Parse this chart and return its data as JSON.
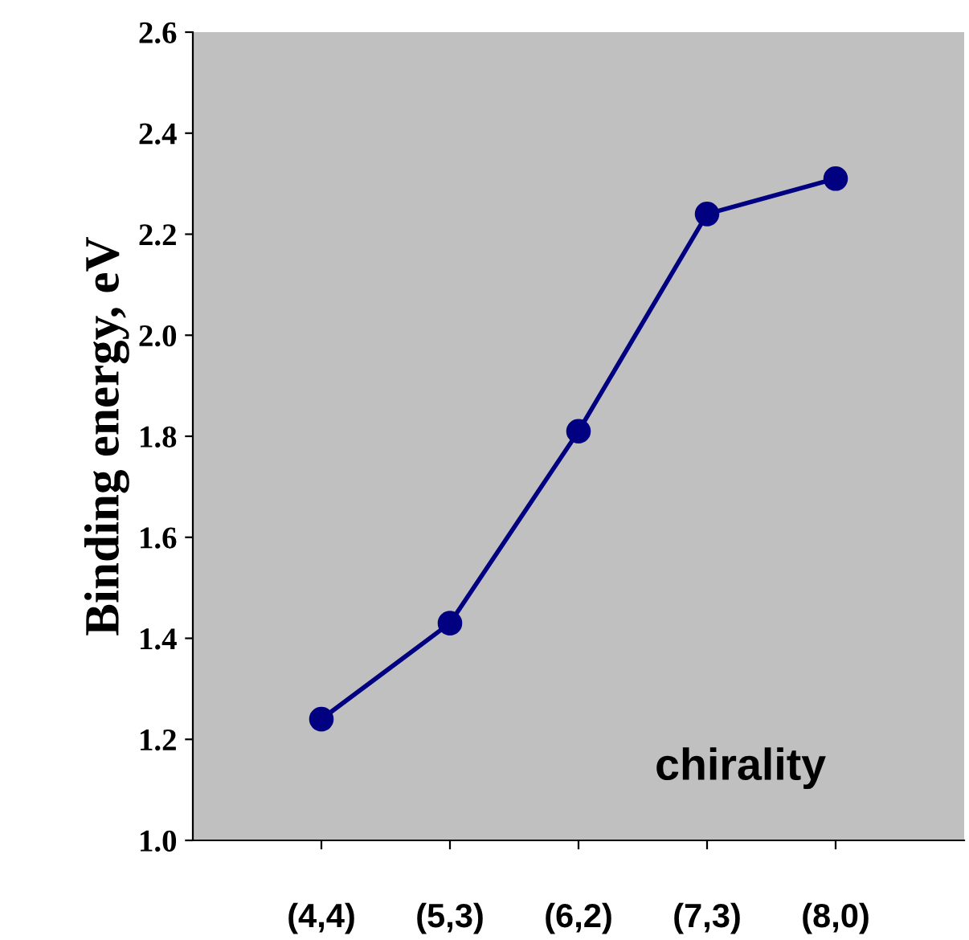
{
  "chart_data": {
    "type": "line",
    "xlabel": "chirality",
    "ylabel": "Binding energy, eV",
    "categories": [
      "(4,4)",
      "(5,3)",
      "(6,2)",
      "(7,3)",
      "(8,0)"
    ],
    "series": [
      {
        "color": "#000080",
        "values": [
          1.24,
          1.43,
          1.81,
          2.24,
          2.31
        ]
      }
    ],
    "ylim": [
      1.0,
      2.6
    ],
    "yticks": [
      {
        "value": 1.0,
        "label": "1.0"
      },
      {
        "value": 1.2,
        "label": "1.2"
      },
      {
        "value": 1.4,
        "label": "1.4"
      },
      {
        "value": 1.6,
        "label": "1.6"
      },
      {
        "value": 1.8,
        "label": "1.8"
      },
      {
        "value": 2.0,
        "label": "2.0"
      },
      {
        "value": 2.2,
        "label": "2.2"
      },
      {
        "value": 2.4,
        "label": "2.4"
      },
      {
        "value": 2.6,
        "label": "2.6"
      }
    ],
    "grid": false,
    "marker": "circle",
    "line_style": "solid"
  }
}
